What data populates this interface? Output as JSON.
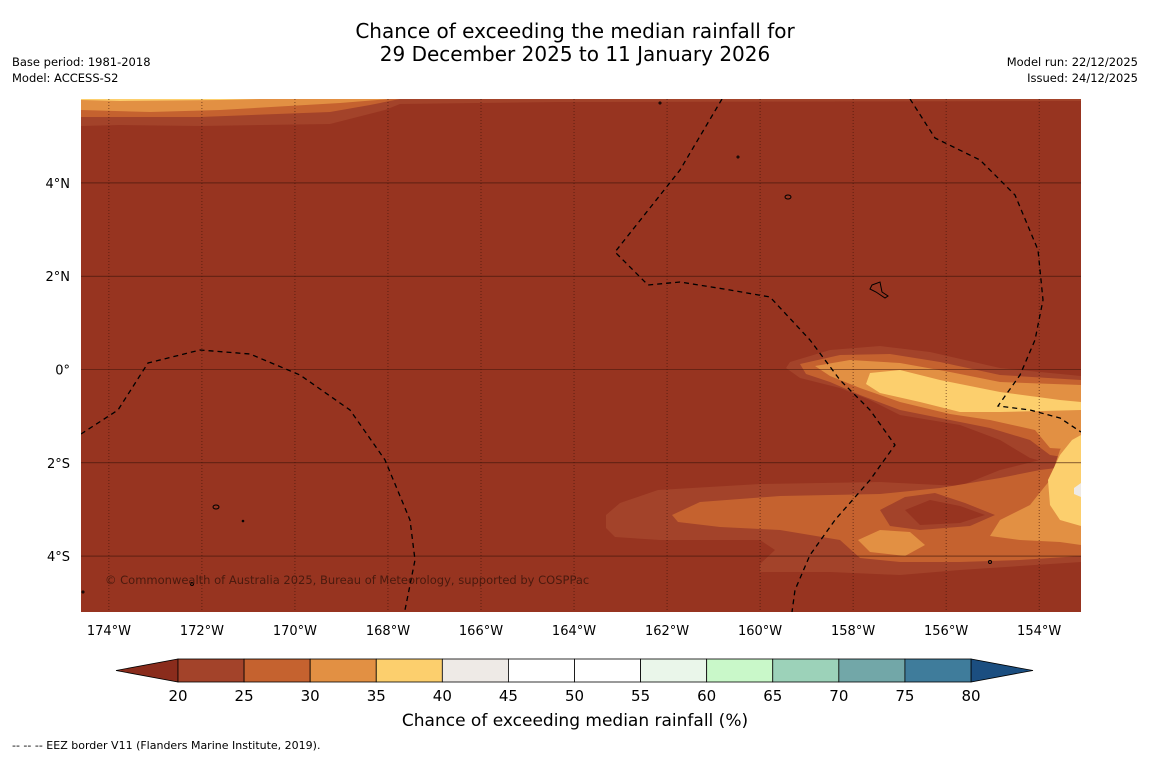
{
  "title": {
    "line1": "Chance of exceeding the median rainfall for",
    "line2": "29 December 2025 to 11 January 2026"
  },
  "meta_left": {
    "base_period": "Base period: 1981-2018",
    "model": "Model: ACCESS-S2"
  },
  "meta_right": {
    "model_run": "Model run: 22/12/2025",
    "issued": "Issued: 24/12/2025"
  },
  "map": {
    "lon_labels": [
      "174°W",
      "172°W",
      "170°W",
      "168°W",
      "166°W",
      "164°W",
      "162°W",
      "160°W",
      "158°W",
      "156°W",
      "154°W"
    ],
    "lon_values": [
      -174,
      -172,
      -170,
      -168,
      -166,
      -164,
      -162,
      -160,
      -158,
      -156,
      -154
    ],
    "lat_labels": [
      "4°N",
      "2°N",
      "0°",
      "2°S",
      "4°S"
    ],
    "lat_values": [
      4,
      2,
      0,
      -2,
      -4
    ],
    "lon_range": [
      -174.6,
      -153.1
    ],
    "lat_range": [
      -5.2,
      5.8
    ],
    "copyright": "© Commonwealth of Australia 2025, Bureau of Meteorology, supported by COSPPac"
  },
  "colorbar": {
    "label": "Chance of exceeding median rainfall (%)",
    "ticks": [
      "20",
      "25",
      "30",
      "35",
      "40",
      "45",
      "50",
      "55",
      "60",
      "65",
      "70",
      "75",
      "80"
    ],
    "colors": [
      "#a3432a",
      "#c5622f",
      "#e29043",
      "#fccf6d",
      "#eeeae6",
      "#ffffff",
      "#ffffff",
      "#eaf6ea",
      "#c9f8c9",
      "#9cd2b9",
      "#72a7a8",
      "#3f7c9b"
    ],
    "under_color": "#8a2c1c",
    "over_color": "#1b4e80"
  },
  "colors": {
    "base": "#973420",
    "c25": "#a3432a",
    "c30": "#c5622f",
    "c35": "#e29043",
    "c40": "#fccf6d",
    "c45": "#eeeae6"
  },
  "footnote": "--  --  -- EEZ border V11 (Flanders Marine Institute, 2019)."
}
